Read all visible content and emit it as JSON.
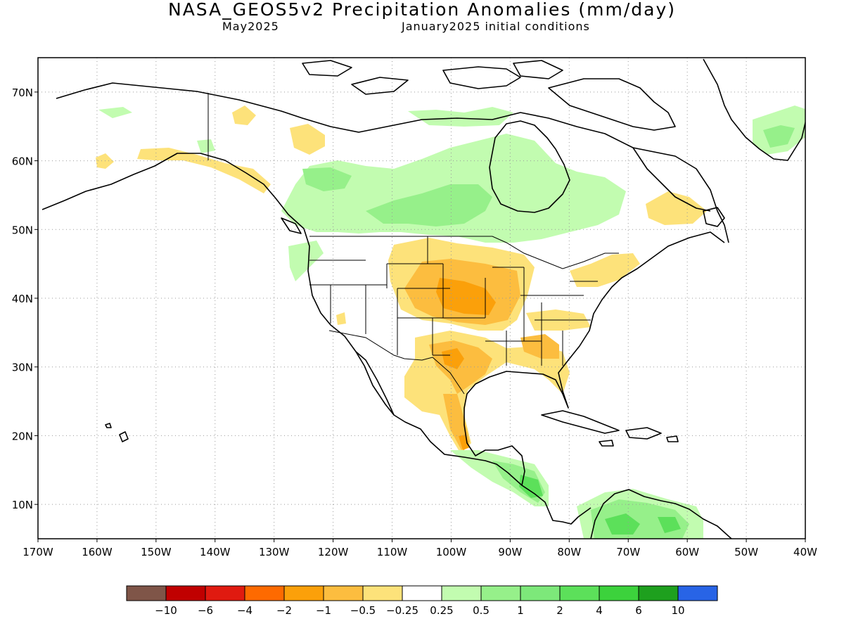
{
  "title": "NASA_GEOS5v2 Precipitation Anomalies (mm/day)",
  "subtitle_left": "May2025",
  "subtitle_right": "January2025 initial conditions",
  "map": {
    "lon_range": [
      -170,
      -40
    ],
    "lat_range": [
      5,
      75
    ],
    "lat_ticks": [
      {
        "value": 70,
        "label": "70N"
      },
      {
        "value": 60,
        "label": "60N"
      },
      {
        "value": 50,
        "label": "50N"
      },
      {
        "value": 40,
        "label": "40N"
      },
      {
        "value": 30,
        "label": "30N"
      },
      {
        "value": 20,
        "label": "20N"
      },
      {
        "value": 10,
        "label": "10N"
      }
    ],
    "lon_ticks": [
      {
        "value": -170,
        "label": "170W"
      },
      {
        "value": -160,
        "label": "160W"
      },
      {
        "value": -150,
        "label": "150W"
      },
      {
        "value": -140,
        "label": "140W"
      },
      {
        "value": -130,
        "label": "130W"
      },
      {
        "value": -120,
        "label": "120W"
      },
      {
        "value": -110,
        "label": "110W"
      },
      {
        "value": -100,
        "label": "100W"
      },
      {
        "value": -90,
        "label": "90W"
      },
      {
        "value": -80,
        "label": "80W"
      },
      {
        "value": -70,
        "label": "70W"
      },
      {
        "value": -60,
        "label": "60W"
      },
      {
        "value": -50,
        "label": "50W"
      },
      {
        "value": -40,
        "label": "40W"
      }
    ],
    "grid": "dotted"
  },
  "legend": {
    "colors": [
      "#7f5548",
      "#c00000",
      "#e01a10",
      "#fe6a00",
      "#fba00a",
      "#fcbd3f",
      "#fde27a",
      "#ffffff",
      "#c2fcb0",
      "#96f08a",
      "#7de87a",
      "#5ce05a",
      "#3cd23c",
      "#1ea01e",
      "#2864e6"
    ],
    "labels": [
      "−10",
      "−6",
      "−4",
      "−2",
      "−1",
      "−0.5",
      "−0.25",
      "0.25",
      "0.5",
      "1",
      "2",
      "4",
      "6",
      "10"
    ]
  }
}
